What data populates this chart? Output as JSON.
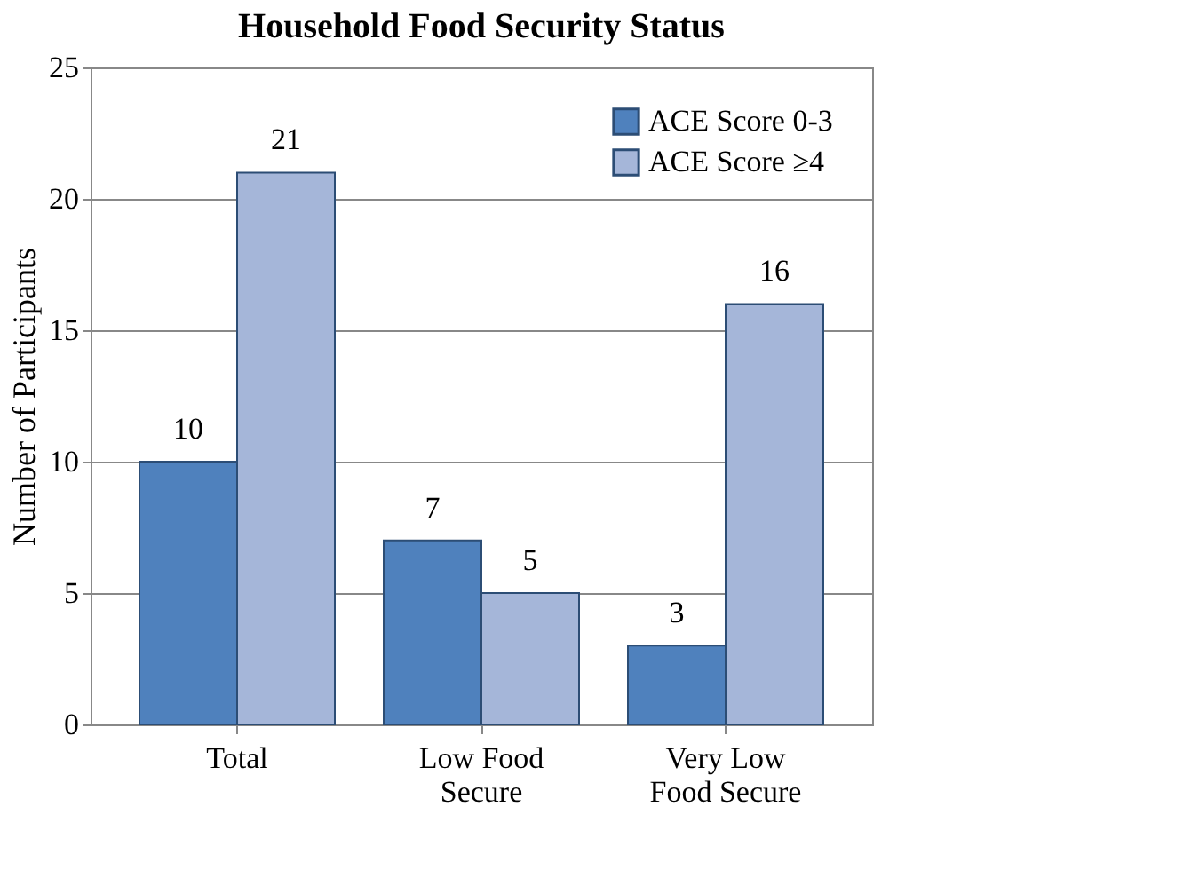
{
  "chart_data": {
    "type": "bar",
    "title": "Household Food Security Status",
    "ylabel": "Number of Participants",
    "categories": [
      "Total",
      "Low Food Secure",
      "Very Low Food Secure"
    ],
    "series": [
      {
        "name": "ACE Score 0-3",
        "color": "#4f81bd",
        "values": [
          10,
          7,
          3
        ]
      },
      {
        "name": "ACE Score ≥4",
        "color": "#a5b6d9",
        "values": [
          21,
          5,
          16
        ]
      }
    ],
    "ylim": [
      0,
      25
    ],
    "yticks": [
      0,
      5,
      10,
      15,
      20,
      25
    ],
    "grid": "y",
    "legend": "top right",
    "data_labels": true
  }
}
